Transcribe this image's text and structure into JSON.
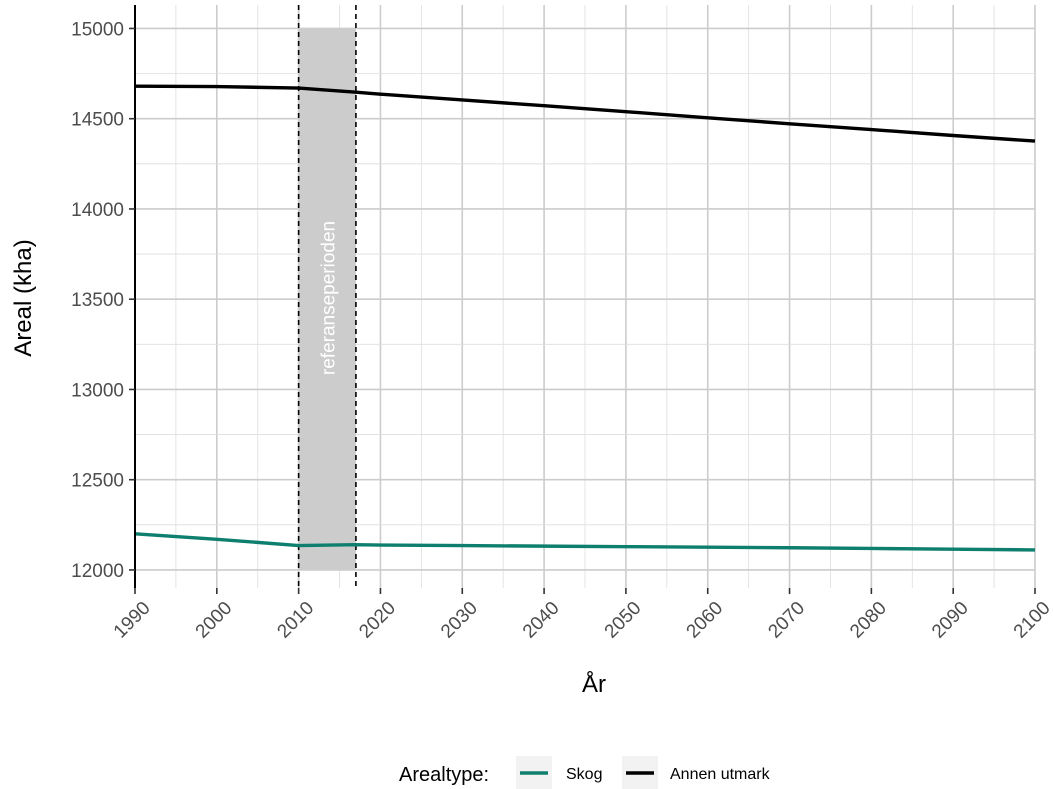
{
  "chart_data": {
    "type": "line",
    "title": "",
    "xlabel": "År",
    "ylabel": "Areal (kha)",
    "xlim": [
      1990,
      2100
    ],
    "ylim": [
      11900,
      15130
    ],
    "x_ticks": [
      1990,
      2000,
      2010,
      2020,
      2030,
      2040,
      2050,
      2060,
      2070,
      2080,
      2090,
      2100
    ],
    "y_ticks": [
      12000,
      12500,
      13000,
      13500,
      14000,
      14500,
      15000
    ],
    "grid": true,
    "legend": {
      "position": "bottom",
      "title": "Arealtype:",
      "entries": [
        "Skog",
        "Annen utmark"
      ]
    },
    "annotations": [
      {
        "type": "shaded-band",
        "label": "referanseperioden",
        "x_start": 2010,
        "x_end": 2017,
        "y_start": 12000,
        "y_end": 15000,
        "color": "#cccccc"
      }
    ],
    "series": [
      {
        "name": "Skog",
        "color": "#0e7f6e",
        "x": [
          1990,
          2000,
          2010,
          2017,
          2020,
          2030,
          2040,
          2050,
          2060,
          2070,
          2080,
          2090,
          2100
        ],
        "values": [
          12200,
          12170,
          12135,
          12140,
          12138,
          12135,
          12132,
          12129,
          12126,
          12123,
          12119,
          12115,
          12111
        ]
      },
      {
        "name": "Annen utmark",
        "color": "#000000",
        "x": [
          1990,
          2000,
          2010,
          2017,
          2020,
          2030,
          2040,
          2050,
          2060,
          2070,
          2080,
          2090,
          2100
        ],
        "values": [
          14680,
          14678,
          14670,
          14647,
          14636,
          14604,
          14572,
          14539,
          14505,
          14472,
          14440,
          14407,
          14376
        ]
      }
    ]
  }
}
